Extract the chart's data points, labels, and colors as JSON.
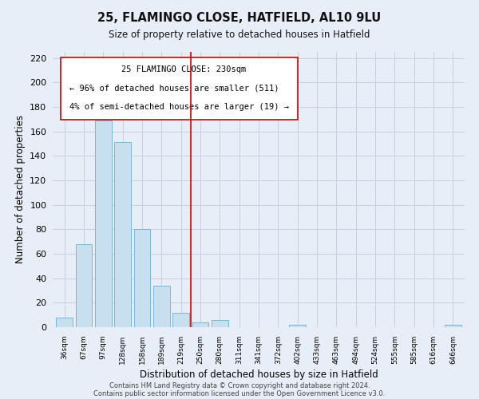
{
  "title": "25, FLAMINGO CLOSE, HATFIELD, AL10 9LU",
  "subtitle": "Size of property relative to detached houses in Hatfield",
  "xlabel": "Distribution of detached houses by size in Hatfield",
  "ylabel": "Number of detached properties",
  "bar_labels": [
    "36sqm",
    "67sqm",
    "97sqm",
    "128sqm",
    "158sqm",
    "189sqm",
    "219sqm",
    "250sqm",
    "280sqm",
    "311sqm",
    "341sqm",
    "372sqm",
    "402sqm",
    "433sqm",
    "463sqm",
    "494sqm",
    "524sqm",
    "555sqm",
    "585sqm",
    "616sqm",
    "646sqm"
  ],
  "bar_values": [
    8,
    68,
    169,
    151,
    80,
    34,
    12,
    4,
    6,
    0,
    0,
    0,
    2,
    0,
    0,
    0,
    0,
    0,
    0,
    0,
    2
  ],
  "bar_color": "#c8dff0",
  "bar_edge_color": "#6aafd4",
  "vline_x": 6.5,
  "vline_color": "#cc0000",
  "ylim": [
    0,
    225
  ],
  "yticks": [
    0,
    20,
    40,
    60,
    80,
    100,
    120,
    140,
    160,
    180,
    200,
    220
  ],
  "annotation_title": "25 FLAMINGO CLOSE: 230sqm",
  "annotation_line1": "← 96% of detached houses are smaller (511)",
  "annotation_line2": "4% of semi-detached houses are larger (19) →",
  "footer_line1": "Contains HM Land Registry data © Crown copyright and database right 2024.",
  "footer_line2": "Contains public sector information licensed under the Open Government Licence v3.0.",
  "background_color": "#e8eef8",
  "grid_color": "#c8d0e0"
}
